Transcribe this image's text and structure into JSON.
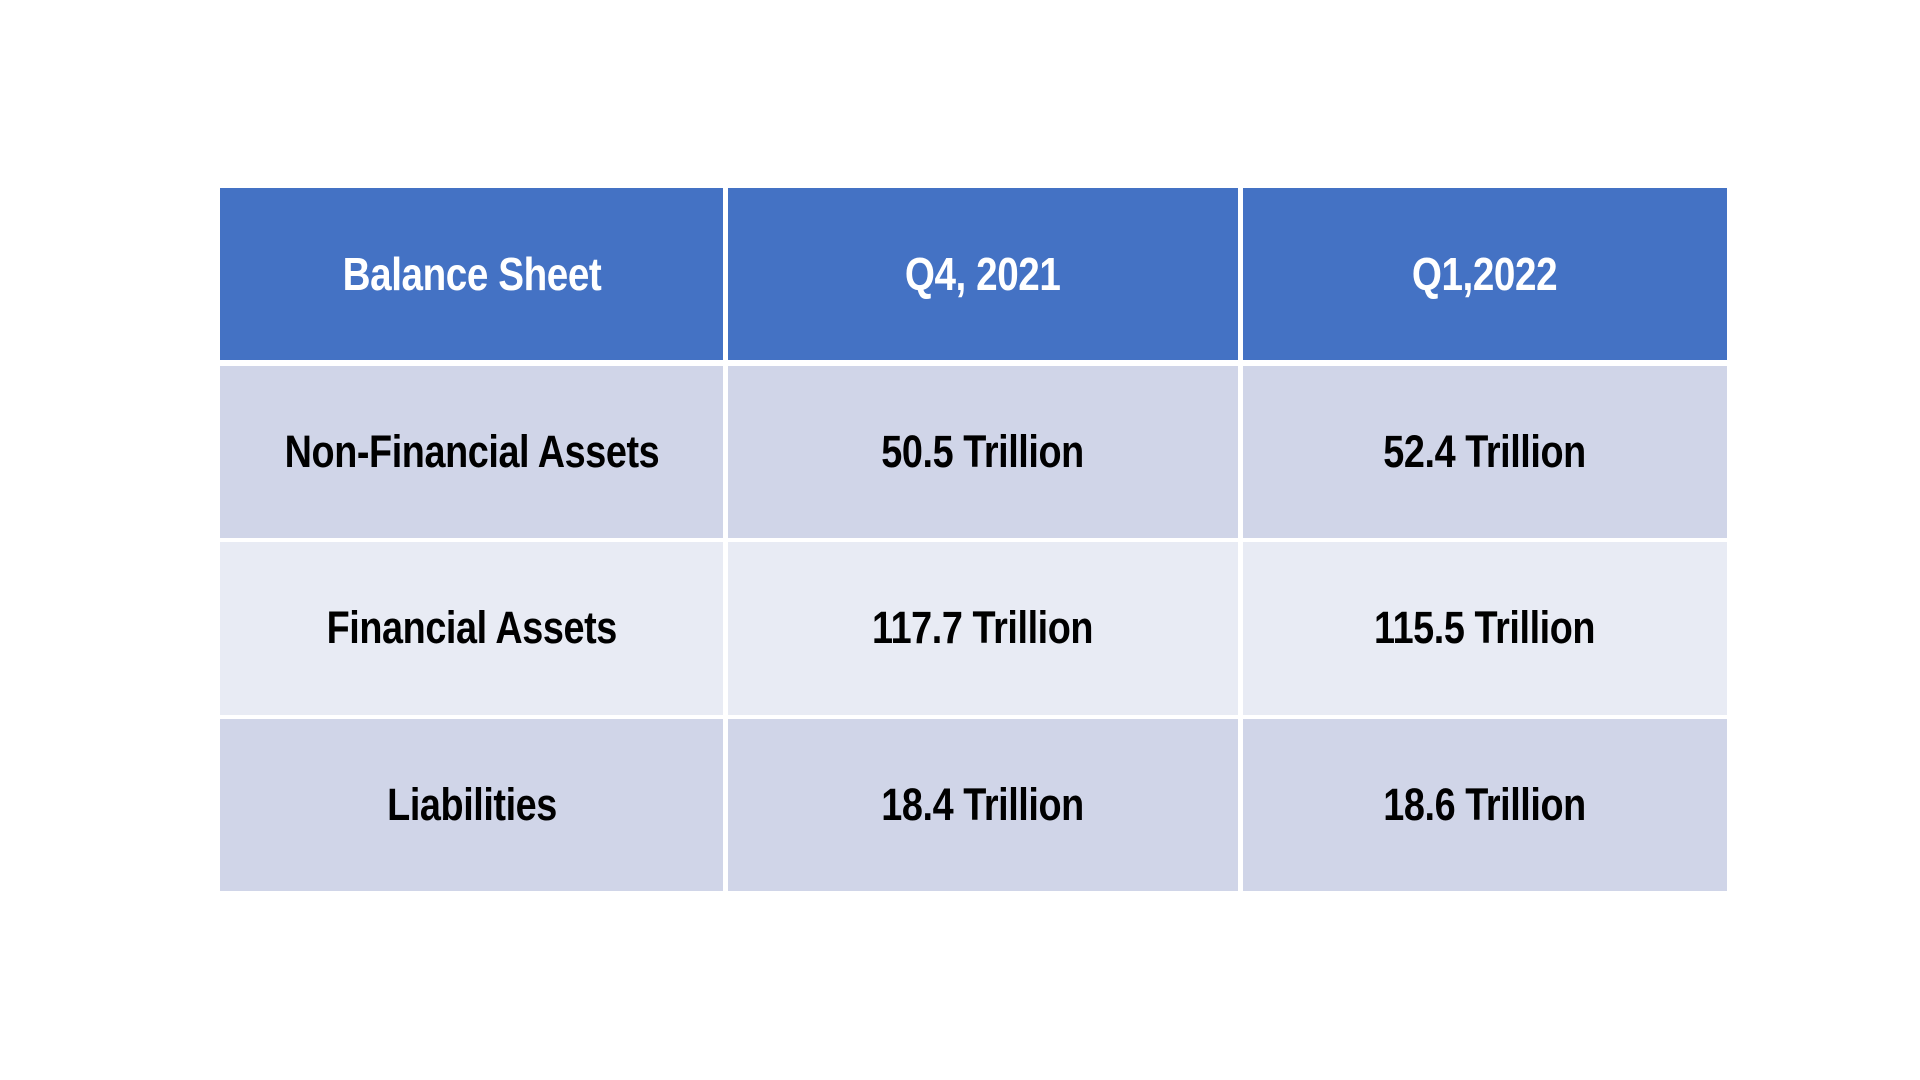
{
  "slide": {
    "background": "#FFFFFF"
  },
  "table": {
    "title": "Balance Sheet",
    "columns": [
      "Balance Sheet",
      "Q4, 2021",
      "Q1,2022"
    ],
    "rows": [
      {
        "cells": [
          "Non-Financial Assets",
          "50.5 Trillion",
          "52.4 Trillion"
        ]
      },
      {
        "cells": [
          "Financial Assets",
          "117.7 Trillion",
          "115.5 Trillion"
        ]
      },
      {
        "cells": [
          "Liabilities",
          "18.4 Trillion",
          "18.6 Trillion"
        ]
      }
    ],
    "colors": {
      "header_bg": "#4472C4",
      "header_text": "#FFFFFF",
      "band_dark": "#D0D5E8",
      "band_light": "#E8EBF4",
      "body_text": "#000000",
      "gridline": "#FFFFFF",
      "canvas_bg": "#FFFFFF"
    }
  },
  "chart_data": {
    "type": "table",
    "title": "Balance Sheet",
    "columns": [
      "Balance Sheet",
      "Q4, 2021",
      "Q1,2022"
    ],
    "rows": [
      [
        "Non-Financial Assets",
        "50.5 Trillion",
        "52.4 Trillion"
      ],
      [
        "Financial Assets",
        "117.7 Trillion",
        "115.5 Trillion"
      ],
      [
        "Liabilities",
        "18.4 Trillion",
        "18.6 Trillion"
      ]
    ],
    "series": [
      {
        "name": "Q4, 2021",
        "values_trillion": [
          50.5,
          117.7,
          18.4
        ]
      },
      {
        "name": "Q1,2022",
        "values_trillion": [
          52.4,
          115.5,
          18.6
        ]
      }
    ],
    "categories": [
      "Non-Financial Assets",
      "Financial Assets",
      "Liabilities"
    ],
    "unit": "Trillion"
  }
}
